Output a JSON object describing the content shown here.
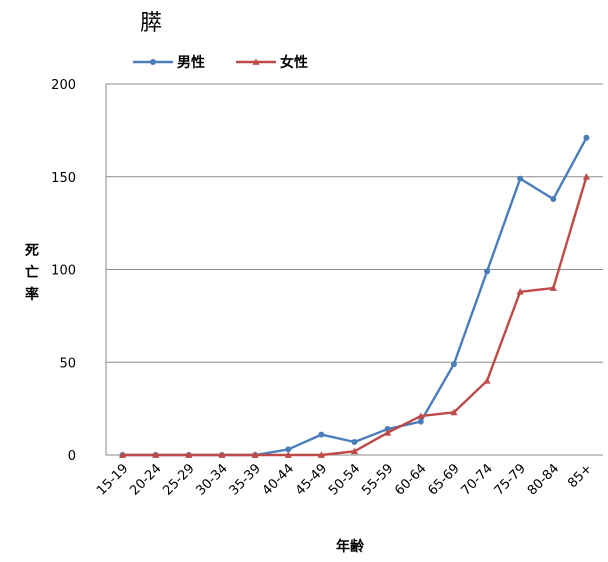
{
  "chart_data": {
    "type": "line",
    "title": "膵",
    "xlabel": "年齢",
    "ylabel": "死亡率",
    "categories": [
      "15-19",
      "20-24",
      "25-29",
      "30-34",
      "35-39",
      "40-44",
      "45-49",
      "50-54",
      "55-59",
      "60-64",
      "65-69",
      "70-74",
      "75-79",
      "80-84",
      "85+"
    ],
    "ylim": [
      0,
      200
    ],
    "yticks": [
      0,
      50,
      100,
      150,
      200
    ],
    "grid": true,
    "legend_position": "top-left",
    "series": [
      {
        "name": "男性",
        "color": "#4a7ebb",
        "marker": "circle",
        "values": [
          0,
          0,
          0,
          0,
          0,
          3,
          11,
          7,
          14,
          18,
          49,
          99,
          149,
          138,
          171
        ]
      },
      {
        "name": "女性",
        "color": "#be4b48",
        "marker": "triangle",
        "values": [
          0,
          0,
          0,
          0,
          0,
          0,
          0,
          2,
          12,
          21,
          23,
          40,
          88,
          90,
          150
        ]
      }
    ]
  }
}
